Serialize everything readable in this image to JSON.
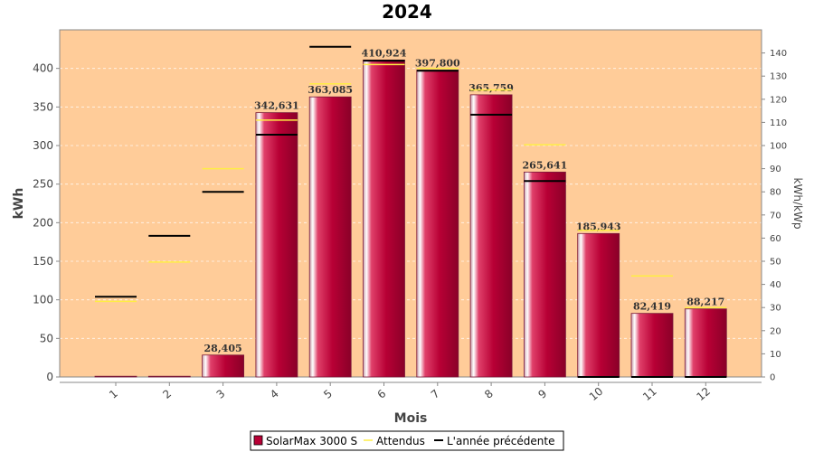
{
  "chart_data": {
    "type": "bar",
    "title": "2024",
    "xlabel": "Mois",
    "ylabel": "kWh",
    "y2label": "kWh/kWp",
    "categories": [
      "1",
      "2",
      "3",
      "4",
      "5",
      "6",
      "7",
      "8",
      "9",
      "10",
      "11",
      "12"
    ],
    "ylim": [
      0,
      450
    ],
    "y2lim": [
      0,
      150
    ],
    "yticks": [
      0,
      50,
      100,
      150,
      200,
      250,
      300,
      350,
      400
    ],
    "y2ticks": [
      0,
      10,
      20,
      30,
      40,
      50,
      60,
      70,
      80,
      90,
      100,
      110,
      120,
      130,
      140
    ],
    "series": [
      {
        "name": "SolarMax 3000 S",
        "kind": "bar",
        "color": "#b80035",
        "values": [
          0,
          0,
          28.405,
          342.631,
          363.085,
          410.924,
          397.8,
          365.759,
          265.641,
          185.943,
          82.419,
          88.217
        ],
        "labels": [
          "",
          "",
          "28,405",
          "342,631",
          "363,085",
          "410,924",
          "397,800",
          "365,759",
          "265,641",
          "185,943",
          "82,419",
          "88,217"
        ]
      },
      {
        "name": "Attendus",
        "kind": "marker",
        "color": "#ffee44",
        "values": [
          98,
          149,
          270,
          333,
          380,
          405,
          400,
          372,
          301,
          190,
          131,
          90
        ]
      },
      {
        "name": "L'année précédente",
        "kind": "marker",
        "color": "#000000",
        "values": [
          104,
          183,
          240,
          314,
          428,
          410,
          397,
          340,
          254,
          0,
          0,
          0
        ]
      }
    ],
    "grid": true,
    "legend_position": "bottom",
    "background": "#ffcc99"
  }
}
